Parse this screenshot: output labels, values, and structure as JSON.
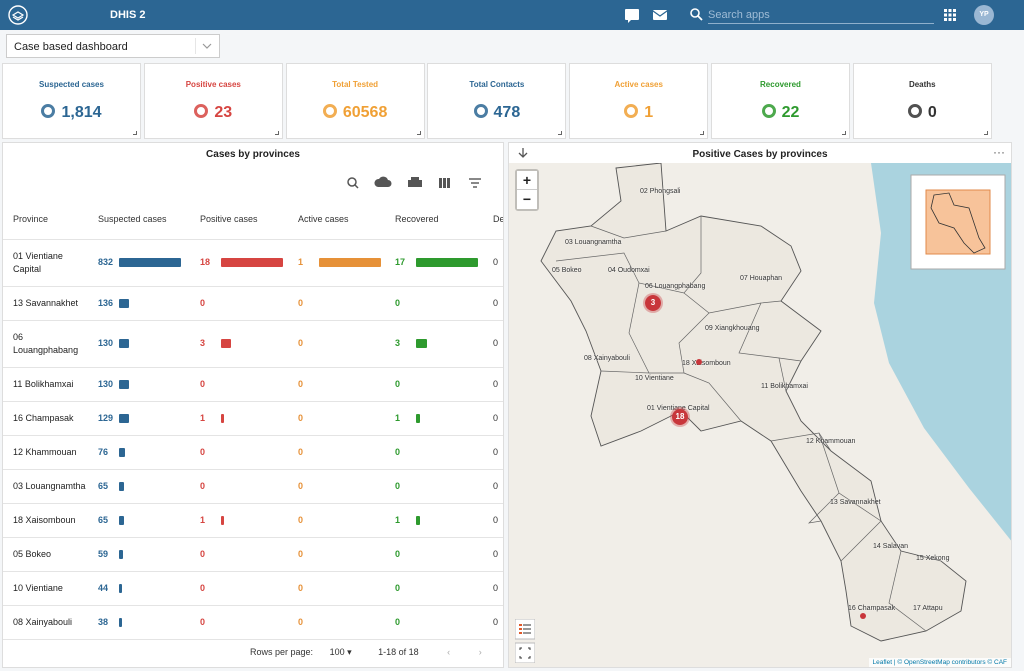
{
  "header": {
    "app_title": "DHIS 2",
    "search_placeholder": "Search apps",
    "user_initials": "YP"
  },
  "dashboard_select": "Case based dashboard",
  "kpis": [
    {
      "title": "Suspected cases",
      "value": "1,814",
      "color": "#2c6693"
    },
    {
      "title": "Positive cases",
      "value": "23",
      "color": "#d64541"
    },
    {
      "title": "Total Tested",
      "value": "60568",
      "color": "#f0a035"
    },
    {
      "title": "Total Contacts",
      "value": "478",
      "color": "#2c6693"
    },
    {
      "title": "Active cases",
      "value": "1",
      "color": "#f0a035"
    },
    {
      "title": "Recovered",
      "value": "22",
      "color": "#2e9a2e"
    },
    {
      "title": "Deaths",
      "value": "0",
      "color": "#333333"
    }
  ],
  "table": {
    "title": "Cases by provinces",
    "columns": [
      "Province",
      "Suspected cases",
      "Positive cases",
      "Active cases",
      "Recovered",
      "Deaths"
    ],
    "column_colors": [
      "#2c6693",
      "#d64541",
      "#e69138",
      "#2e9a2e",
      "#333333"
    ],
    "rows": [
      {
        "province": "01 Vientiane Capital",
        "values": [
          832,
          18,
          1,
          17,
          0
        ]
      },
      {
        "province": "13 Savannakhet",
        "values": [
          136,
          0,
          0,
          0,
          0
        ]
      },
      {
        "province": "06 Louangphabang",
        "values": [
          130,
          3,
          0,
          3,
          0
        ]
      },
      {
        "province": "11 Bolikhamxai",
        "values": [
          130,
          0,
          0,
          0,
          0
        ]
      },
      {
        "province": "16 Champasak",
        "values": [
          129,
          1,
          0,
          1,
          0
        ]
      },
      {
        "province": "12 Khammouan",
        "values": [
          76,
          0,
          0,
          0,
          0
        ]
      },
      {
        "province": "03 Louangnamtha",
        "values": [
          65,
          0,
          0,
          0,
          0
        ]
      },
      {
        "province": "18 Xaisomboun",
        "values": [
          65,
          1,
          0,
          1,
          0
        ]
      },
      {
        "province": "05 Bokeo",
        "values": [
          59,
          0,
          0,
          0,
          0
        ]
      },
      {
        "province": "10 Vientiane",
        "values": [
          44,
          0,
          0,
          0,
          0
        ]
      },
      {
        "province": "08 Xainyabouli",
        "values": [
          38,
          0,
          0,
          0,
          0
        ]
      }
    ],
    "footer": {
      "rows_per_page_label": "Rows per page:",
      "rows_per_page": "100",
      "range": "1-18 of 18"
    }
  },
  "map": {
    "title": "Positive Cases by provinces",
    "zoom_in": "+",
    "zoom_out": "−",
    "provinces": [
      "02 Phongsali",
      "03 Louangnamtha",
      "05 Bokeo",
      "04 Oudomxai",
      "06 Louangphabang",
      "07 Houaphan",
      "09 Xiangkhouang",
      "08 Xainyabouli",
      "18 Xaisomboun",
      "10 Vientiane",
      "11 Bolikhamxai",
      "01 Vientiane Capital",
      "12 Khammouan",
      "13 Savannakhet",
      "14 Salavan",
      "15 Xekong",
      "16 Champasak",
      "17 Attapu"
    ],
    "clusters": [
      3,
      18
    ],
    "attribution": "Leaflet | © OpenStreetMap contributors © CAF"
  }
}
